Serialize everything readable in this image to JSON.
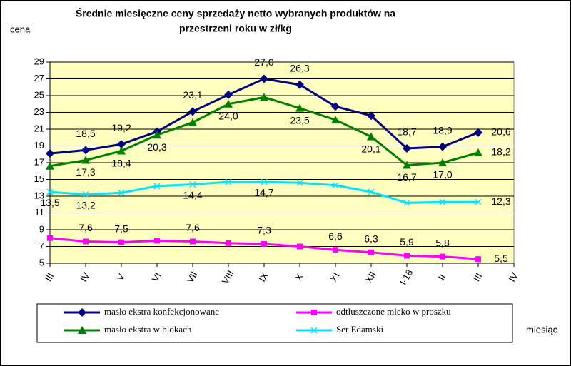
{
  "chart_data": {
    "type": "line",
    "title": [
      "Średnie miesięczne ceny sprzedaży netto  wybranych produktów na",
      "przestrzeni roku w zł/kg"
    ],
    "y_label": "cena",
    "x_label": "miesiąc",
    "categories": [
      "III",
      "IV",
      "V",
      "VI",
      "VII",
      "VIII",
      "IX",
      "X",
      "XI",
      "XII",
      "I-18",
      "II",
      "III",
      "IV"
    ],
    "series": [
      {
        "name": "masło ekstra konfekcjonowane",
        "color": "#000080",
        "marker": "diamond",
        "values": [
          18.1,
          18.5,
          19.2,
          20.7,
          23.1,
          25.1,
          27.0,
          26.3,
          23.7,
          22.6,
          18.7,
          18.9,
          20.6,
          null
        ],
        "value_labels": [
          null,
          "18,5",
          "19,2",
          null,
          "23,1",
          null,
          "27,0",
          "26,3",
          null,
          null,
          "18,7",
          "18,9",
          "20,6",
          null
        ]
      },
      {
        "name": "odtłuszczone mleko w proszku",
        "color": "#ff00ff",
        "marker": "square",
        "values": [
          8.0,
          7.6,
          7.5,
          7.7,
          7.6,
          7.4,
          7.3,
          7.0,
          6.6,
          6.3,
          5.9,
          5.8,
          5.5,
          null
        ],
        "value_labels": [
          null,
          "7,6",
          "7,5",
          null,
          "7,6",
          null,
          "7,3",
          null,
          "6,6",
          "6,3",
          "5,9",
          "5,8",
          "5,5",
          null
        ]
      },
      {
        "name": "masło ekstra w blokach",
        "color": "#008000",
        "marker": "triangle",
        "values": [
          16.6,
          17.3,
          18.4,
          20.3,
          21.8,
          24.0,
          24.8,
          23.5,
          22.1,
          20.1,
          16.7,
          17.0,
          18.2,
          null
        ],
        "value_labels": [
          null,
          "17,3",
          "18,4",
          "20,3",
          null,
          "24,0",
          null,
          "23,5",
          null,
          "20,1",
          "16,7",
          "17,0",
          "18,2",
          null
        ]
      },
      {
        "name": "Ser Edamski",
        "color": "#00e5ff",
        "marker": "x",
        "values": [
          13.5,
          13.2,
          13.4,
          14.2,
          14.4,
          14.7,
          14.7,
          14.6,
          14.3,
          13.5,
          12.2,
          12.3,
          12.3,
          null
        ],
        "value_labels": [
          "13,5",
          "13,2",
          null,
          null,
          "14,4",
          null,
          "14,7",
          null,
          null,
          null,
          null,
          null,
          "12,3",
          null
        ]
      }
    ],
    "ylim": [
      5,
      29
    ],
    "yticks": [
      5,
      7,
      9,
      11,
      13,
      15,
      17,
      19,
      21,
      23,
      25,
      27,
      29
    ],
    "grid": true,
    "plot_background": "#ffffc0",
    "legend": "bottom"
  }
}
